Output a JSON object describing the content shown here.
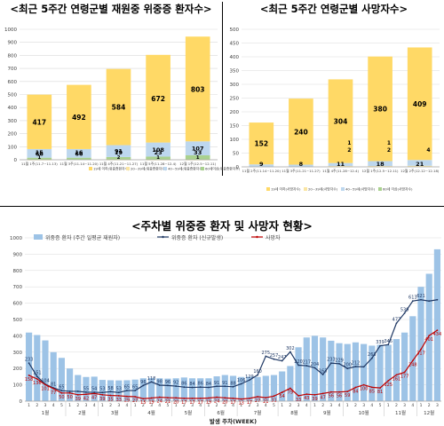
{
  "titles": {
    "left": "<최근 5주간 연령군별 재원중 위중증 환자수>",
    "right": "<최근 5주간 연령군별 사망자수>",
    "bottom": "<주차별 위중증 환자 및 사망자 현황>"
  },
  "colors": {
    "age_lt19": "#ffd966",
    "age_20_39": "#fae5a3",
    "age_40_59": "#bdd7ee",
    "age_60plus": "#a9d18e",
    "bar_weekly": "#9dc3e6",
    "line_severe": "#1f3864",
    "line_death": "#c00000",
    "grid": "#d9d9d9",
    "axis_text": "#404040"
  },
  "chart_data": [
    {
      "type": "bar",
      "stacked": true,
      "categories": [
        "11월 1주(11.7~11.13)",
        "11월 3주(11.14~11.20)",
        "11월 4주(11.21~11.27)",
        "11월 5주(11.28~12.4)",
        "12월 1주(12.5~12.11)"
      ],
      "series": [
        {
          "name": "60세이상위중증환자수",
          "values": [
            417,
            492,
            584,
            672,
            803
          ],
          "labels": [
            "417",
            "492",
            "584",
            "672",
            "803"
          ]
        },
        {
          "name": "40~59세위중증환자수",
          "values": [
            66,
            66,
            91,
            108,
            107
          ],
          "labels": [
            "66",
            "66",
            "91",
            "108",
            "107"
          ]
        },
        {
          "name": "20~39세위중증환자수",
          "values": [
            15,
            16,
            19,
            23,
            33
          ],
          "labels": [
            "15",
            "16",
            "19",
            "23",
            "33"
          ]
        },
        {
          "name": "19세 이하위중증환자수",
          "values": [
            1,
            0,
            2,
            1,
            1
          ],
          "labels": [
            "1",
            "",
            "2",
            "1",
            "1"
          ]
        }
      ],
      "ylim": [
        0,
        1000
      ],
      "yticks": [
        0,
        100,
        200,
        300,
        400,
        500,
        600,
        700,
        800,
        900,
        1000
      ],
      "grid": true,
      "legend": "bottom",
      "legend_labels": [
        "19세 이하(위중증환자수)",
        "20~39세(위중증환자수)",
        "40~59세(위중증환자수)",
        "60세이상(위중증환자수)"
      ]
    },
    {
      "type": "bar",
      "stacked": true,
      "categories": [
        "11월 2주(11.14~11.20)",
        "11월 3주(11.21~11.27)",
        "11월 4주(11.28~12.4)",
        "12월 1주(12.5~12.11)",
        "12월 2주(12.12~12.18)"
      ],
      "series": [
        {
          "name": "60세이상사망자수",
          "values": [
            152,
            240,
            304,
            380,
            409
          ],
          "labels": [
            "152",
            "240",
            "304",
            "380",
            "409"
          ]
        },
        {
          "name": "40~59세사망자수",
          "values": [
            9,
            8,
            11,
            18,
            21
          ],
          "labels": [
            "9",
            "8",
            "11",
            "18",
            "21"
          ]
        },
        {
          "name": "20~39세사망자수",
          "values": [
            0,
            0,
            2,
            2,
            4
          ],
          "labels": [
            "",
            "",
            "2",
            "2",
            "4"
          ]
        },
        {
          "name": "19세 이하사망자수",
          "values": [
            0,
            0,
            1,
            1,
            0
          ],
          "labels": [
            "",
            "",
            "1",
            "1",
            ""
          ]
        }
      ],
      "ylim": [
        0,
        500
      ],
      "yticks": [
        0,
        50,
        100,
        150,
        200,
        250,
        300,
        350,
        400,
        450,
        500
      ],
      "grid": true,
      "legend": "bottom",
      "legend_labels": [
        "19세 이하(사망자수)",
        "20~39세(사망자수)",
        "40~59세(사망자수)",
        "60세 이상(사망자수)"
      ]
    },
    {
      "type": "bar",
      "combo": "bar+line",
      "xlabel": "발생 주차(WEEK)",
      "month_labels": [
        "1월",
        "2월",
        "3월",
        "4월",
        "5월",
        "6월",
        "7월",
        "8월",
        "9월",
        "10월",
        "11월",
        "12월"
      ],
      "weeks_per_month": [
        5,
        4,
        4,
        5,
        4,
        4,
        5,
        4,
        4,
        5,
        4,
        3
      ],
      "week_numbers": [
        "1",
        "2",
        "3",
        "4",
        "5",
        "1",
        "2",
        "3",
        "4",
        "1",
        "2",
        "3",
        "4",
        "1",
        "2",
        "3",
        "4",
        "5",
        "1",
        "2",
        "3",
        "4",
        "1",
        "2",
        "3",
        "4",
        "1",
        "2",
        "3",
        "4",
        "5",
        "1",
        "2",
        "3",
        "4",
        "1",
        "2",
        "3",
        "4",
        "1",
        "2",
        "3",
        "4",
        "5",
        "1",
        "2",
        "3",
        "4",
        "1",
        "2",
        "3"
      ],
      "series": [
        {
          "name": "위중증 환자 (주간 일평균 재원자)",
          "type": "bar",
          "values": [
            420,
            405,
            372,
            300,
            265,
            200,
            160,
            148,
            150,
            130,
            128,
            127,
            128,
            132,
            140,
            142,
            140,
            138,
            140,
            145,
            140,
            140,
            140,
            152,
            160,
            155,
            148,
            150,
            148,
            155,
            160,
            182,
            215,
            330,
            390,
            400,
            390,
            370,
            355,
            350,
            360,
            350,
            340,
            345,
            345,
            380,
            420,
            520,
            700,
            780,
            930
          ]
        },
        {
          "name": "위중증 환자 (신규발생)",
          "type": "line",
          "values": [
            233,
            151,
            104,
            81,
            65,
            60,
            60,
            55,
            54,
            53,
            58,
            53,
            65,
            65,
            96,
            118,
            98,
            96,
            92,
            86,
            84,
            86,
            84,
            91,
            91,
            88,
            106,
            129,
            160,
            275,
            257,
            247,
            302,
            220,
            217,
            204,
            163,
            233,
            229,
            200,
            212,
            210,
            263,
            339,
            346,
            477,
            539,
            613,
            621,
            613,
            621
          ],
          "labels": [
            "233",
            "151",
            "104",
            "81",
            "65",
            "",
            "",
            "55",
            "54",
            "53",
            "58",
            "53",
            "65",
            "65",
            "96",
            "118",
            "98",
            "96",
            "92",
            "86",
            "84",
            "86",
            "84",
            "91",
            "91",
            "88",
            "106",
            "129",
            "160",
            "275",
            "257",
            "247",
            "302",
            "220",
            "217",
            "204",
            "163",
            "233",
            "229",
            "200",
            "212",
            "",
            "263",
            "339",
            "346",
            "477",
            "539",
            "613",
            "621",
            "",
            ""
          ]
        },
        {
          "name": "사망자",
          "type": "line",
          "values": [
            158,
            136,
            101,
            77,
            50,
            50,
            39,
            42,
            47,
            39,
            35,
            33,
            29,
            27,
            15,
            19,
            24,
            21,
            20,
            17,
            17,
            17,
            19,
            24,
            20,
            17,
            13,
            17,
            27,
            21,
            31,
            54,
            79,
            33,
            43,
            39,
            47,
            56,
            56,
            59,
            84,
            100,
            85,
            81,
            125,
            161,
            177,
            248,
            317,
            401,
            434
          ],
          "labels": [
            "158",
            "136",
            "101",
            "77",
            "50",
            "50",
            "39",
            "42",
            "47",
            "39",
            "35",
            "33",
            "29",
            "27",
            "15",
            "19",
            "24",
            "21",
            "20",
            "17",
            "17",
            "17",
            "19",
            "24",
            "20",
            "17",
            "13",
            "17",
            "27",
            "21",
            "31",
            "54",
            "79",
            "33",
            "43",
            "39",
            "47",
            "56",
            "56",
            "59",
            "84",
            "100",
            "85",
            "81",
            "125",
            "161",
            "177",
            "248",
            "317",
            "401",
            "434"
          ]
        }
      ],
      "ylim": [
        0,
        1000
      ],
      "yticks": [
        0,
        100,
        200,
        300,
        400,
        500,
        600,
        700,
        800,
        900,
        1000
      ],
      "grid": true,
      "legend": "top"
    }
  ]
}
